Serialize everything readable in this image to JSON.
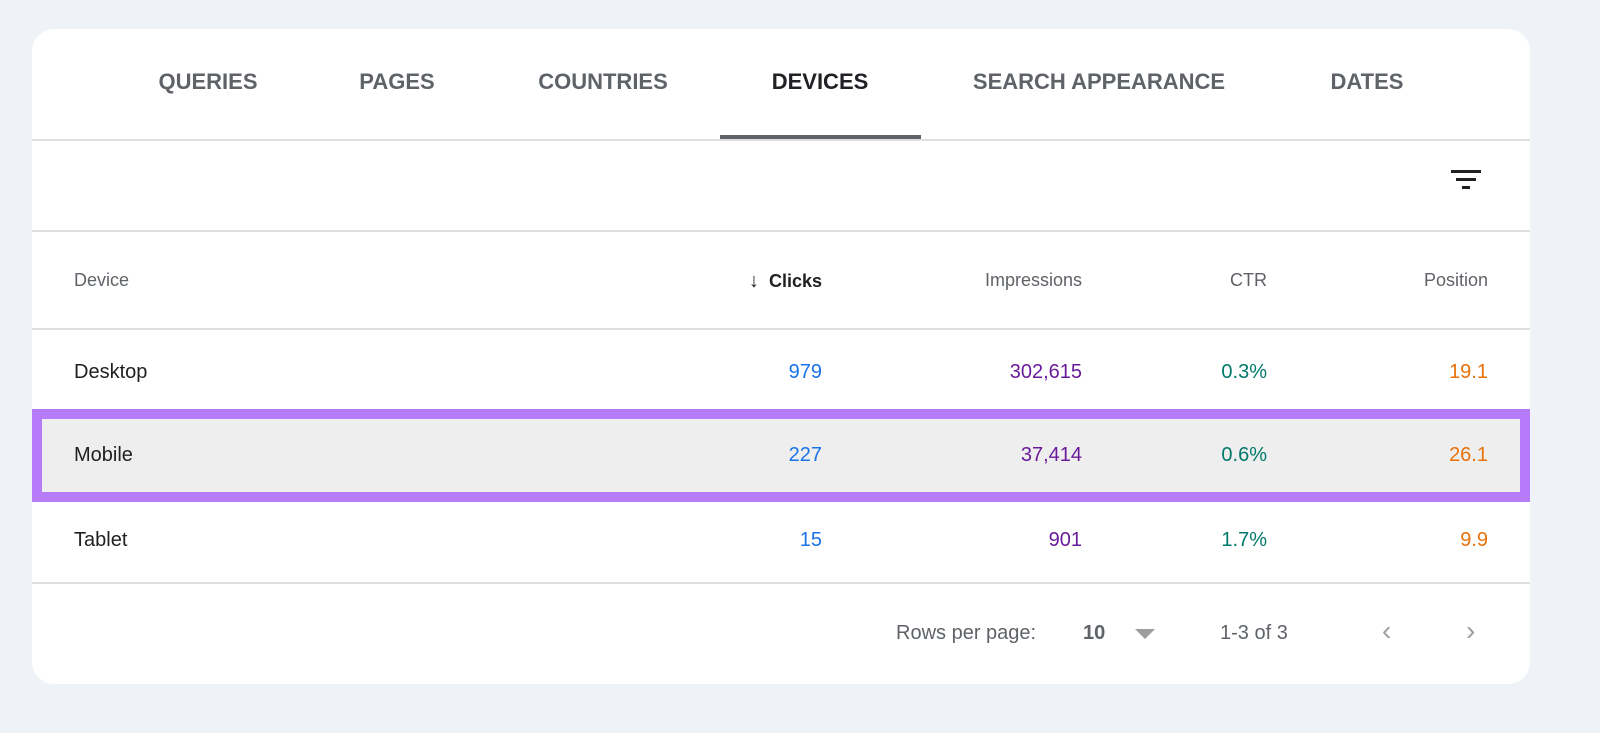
{
  "tabs": [
    {
      "label": "QUERIES"
    },
    {
      "label": "PAGES"
    },
    {
      "label": "COUNTRIES"
    },
    {
      "label": "DEVICES",
      "active": true
    },
    {
      "label": "SEARCH APPEARANCE"
    },
    {
      "label": "DATES"
    }
  ],
  "table": {
    "columns": {
      "device": "Device",
      "clicks": "Clicks",
      "impressions": "Impressions",
      "ctr": "CTR",
      "position": "Position"
    },
    "sort": {
      "column": "Clicks",
      "direction": "descending"
    },
    "rows": [
      {
        "device": "Desktop",
        "clicks": "979",
        "impressions": "302,615",
        "ctr": "0.3%",
        "position": "19.1"
      },
      {
        "device": "Mobile",
        "clicks": "227",
        "impressions": "37,414",
        "ctr": "0.6%",
        "position": "26.1",
        "highlighted": true
      },
      {
        "device": "Tablet",
        "clicks": "15",
        "impressions": "901",
        "ctr": "1.7%",
        "position": "9.9"
      }
    ]
  },
  "pagination": {
    "rows_per_page_label": "Rows per page:",
    "rows_per_page": "10",
    "range": "1-3 of 3"
  },
  "colors": {
    "clicks": "#1a73e8",
    "impressions": "#6a1b9a",
    "ctr": "#00796b",
    "position": "#e8710a",
    "highlight": "#b57bf9"
  }
}
